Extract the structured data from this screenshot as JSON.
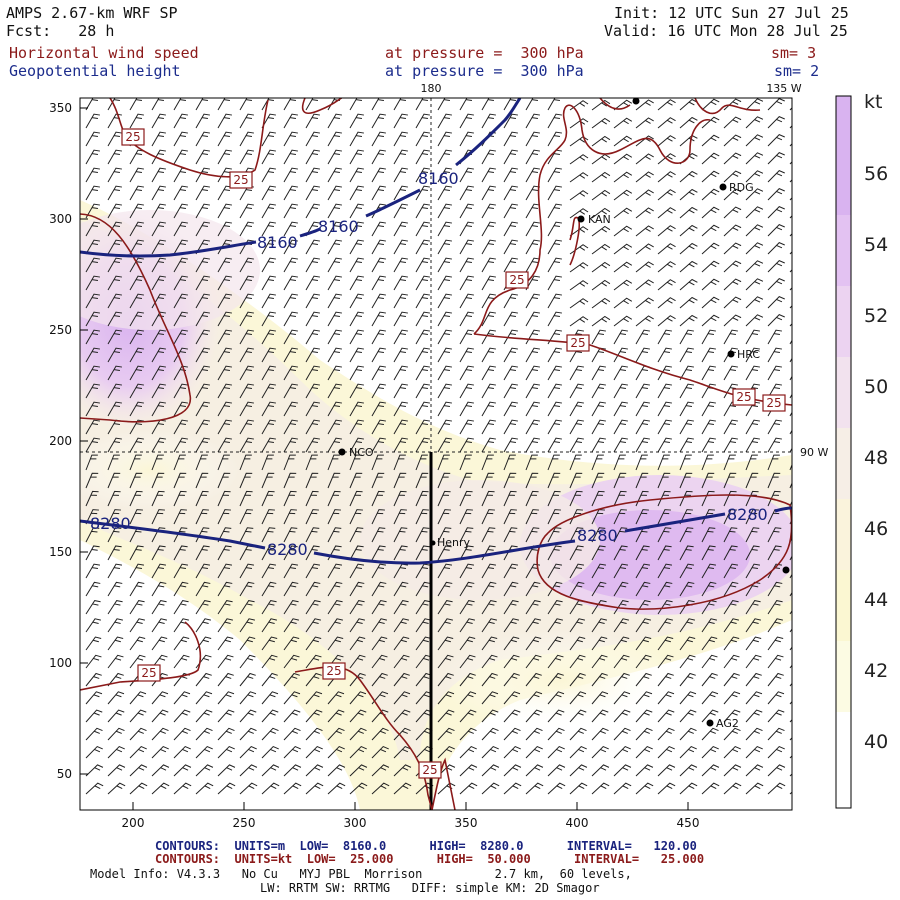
{
  "header": {
    "model": "AMPS 2.67-km WRF SP",
    "forecast": "Fcst:   28 h",
    "init": "Init: 12 UTC Sun 27 Jul 25",
    "valid": "Valid: 16 UTC Mon 28 Jul 25",
    "field1_name": "Horizontal wind speed",
    "field1_level": "at pressure =  300 hPa",
    "field1_sm": "sm= 3",
    "field2_name": "Geopotential height",
    "field2_level": "at pressure =  300 hPa",
    "field2_sm": "sm= 2"
  },
  "map": {
    "top_labels": [
      "180",
      "135 W"
    ],
    "right_label": "90 W",
    "x_ticks": [
      "200",
      "250",
      "300",
      "350",
      "400",
      "450"
    ],
    "y_ticks": [
      "50",
      "100",
      "150",
      "200",
      "250",
      "300",
      "350"
    ],
    "stations": [
      {
        "name": "RDG"
      },
      {
        "name": "KAN"
      },
      {
        "name": "HRC"
      },
      {
        "name": "NCO"
      },
      {
        "name": "Henry"
      },
      {
        "name": "AG2"
      }
    ],
    "height_contour_labels": [
      "8160",
      "8160",
      "8160",
      "8280",
      "8280",
      "8280",
      "8280"
    ],
    "speed_contour_label": "25"
  },
  "colorbar": {
    "unit": "kt",
    "labels": [
      "56",
      "54",
      "52",
      "50",
      "48",
      "46",
      "44",
      "42",
      "40"
    ],
    "colors": [
      "#d9b3f0",
      "#e3c2f2",
      "#ecd3f1",
      "#f2e2ee",
      "#f6eee6",
      "#faf3dc",
      "#fbf7d2",
      "#fcfbe3",
      "#ffffff"
    ]
  },
  "footer": {
    "contours_blue": "CONTOURS:  UNITS=m  LOW=  8160.0      HIGH=  8280.0      INTERVAL=   120.00",
    "contours_red": "CONTOURS:  UNITS=kt  LOW=  25.000      HIGH=  50.000      INTERVAL=   25.000",
    "model_info": "Model Info: V4.3.3   No Cu   MYJ PBL  Morrison          2.7 km,  60 levels,",
    "physics": "LW: RRTM SW: RRTMG   DIFF: simple KM: 2D Smagor"
  }
}
